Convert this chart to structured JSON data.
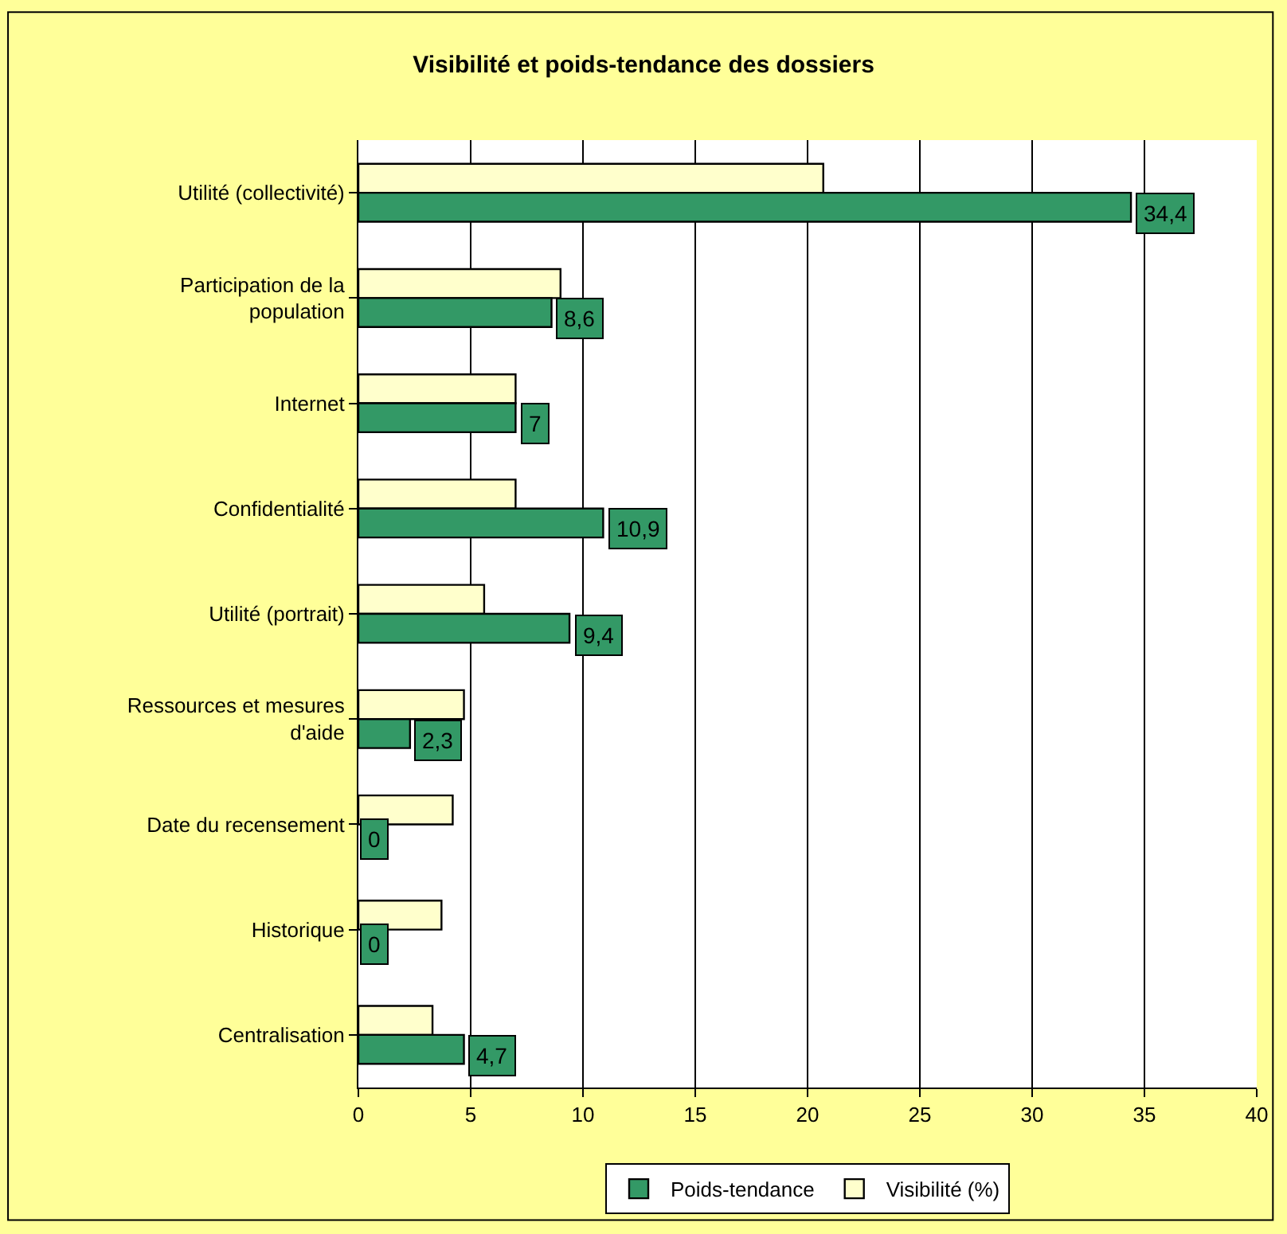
{
  "chart_data": {
    "type": "bar",
    "orientation": "horizontal",
    "title": "Visibilité et poids-tendance des dossiers",
    "categories": [
      "Utilité (collectivité)",
      "Participation de la population",
      "Internet",
      "Confidentialité",
      "Utilité (portrait)",
      "Ressources et mesures d'aide",
      "Date du recensement",
      "Historique",
      "Centralisation"
    ],
    "series": [
      {
        "name": "Poids-tendance",
        "color": "#339966",
        "values": [
          34.4,
          8.6,
          7,
          10.9,
          9.4,
          2.3,
          0,
          0,
          4.7
        ],
        "value_labels": [
          "34,4",
          "8,6",
          "7",
          "10,9",
          "9,4",
          "2,3",
          "0",
          "0",
          "4,7"
        ]
      },
      {
        "name": "Visibilité (%)",
        "color": "#ffffcc",
        "values": [
          20.7,
          9.0,
          7.0,
          7.0,
          5.6,
          4.7,
          4.2,
          3.7,
          3.3
        ]
      }
    ],
    "xlim": [
      0,
      40
    ],
    "xticks": [
      0,
      5,
      10,
      15,
      20,
      25,
      30,
      35,
      40
    ],
    "grid": "x",
    "legend": "bottom"
  }
}
